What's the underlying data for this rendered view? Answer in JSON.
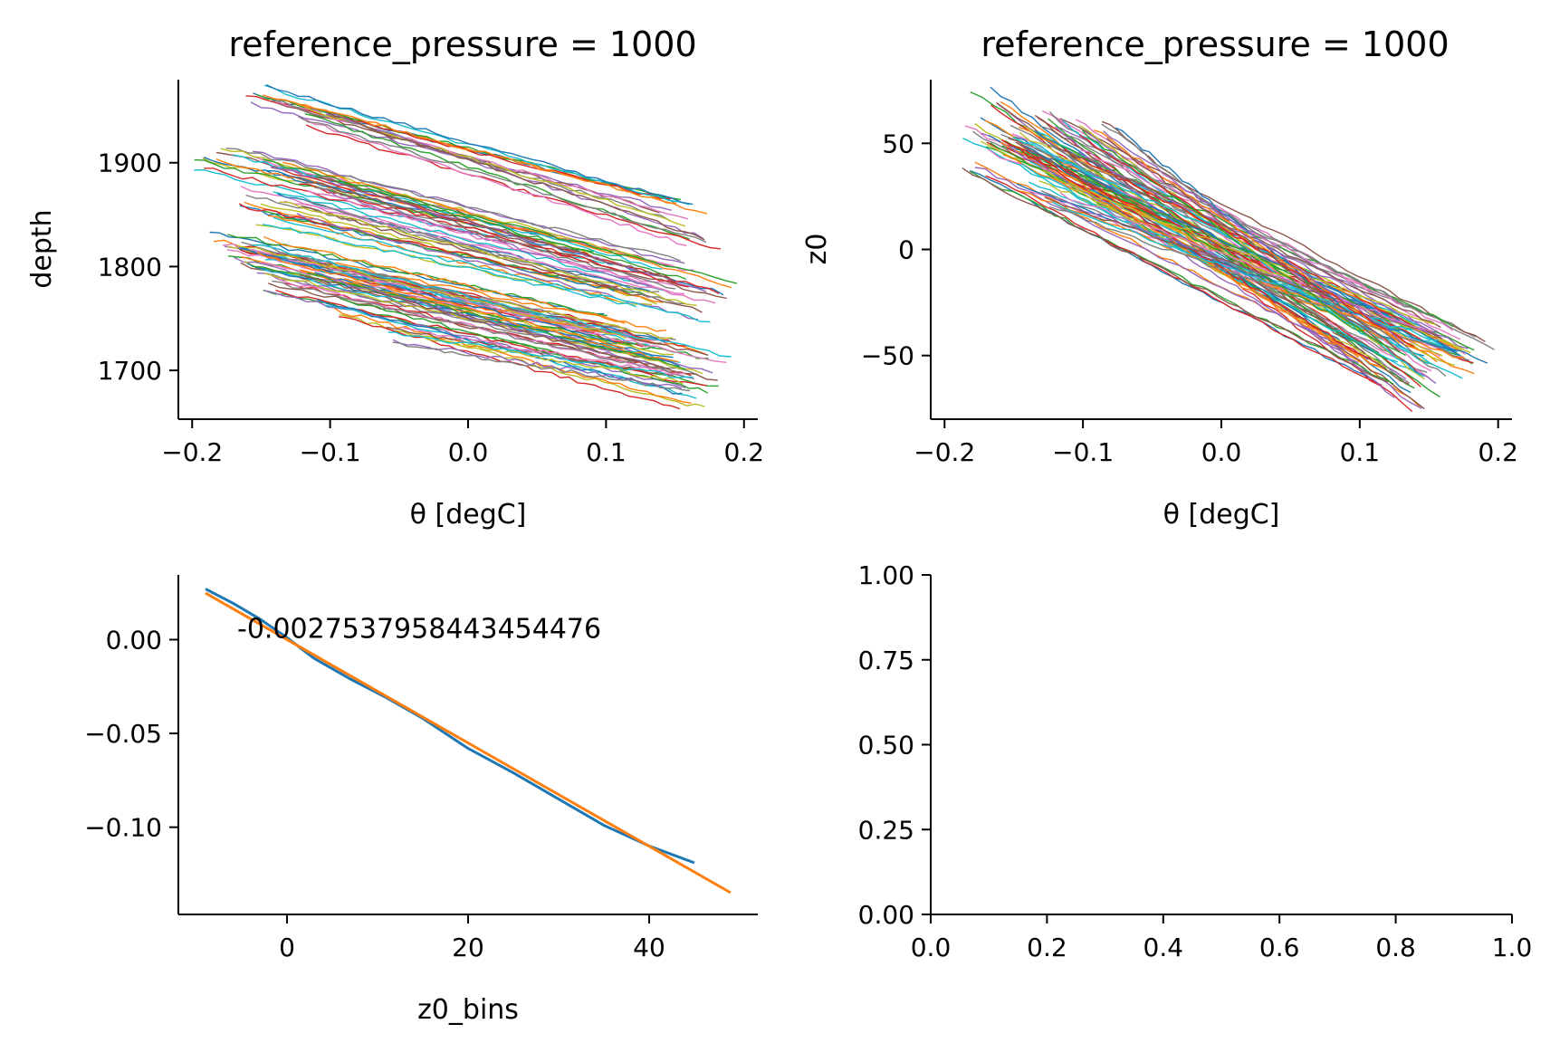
{
  "colors": [
    "#1f77b4",
    "#ff7f0e",
    "#2ca02c",
    "#d62728",
    "#9467bd",
    "#8c564b",
    "#e377c2",
    "#7f7f7f",
    "#bcbd22",
    "#17becf"
  ],
  "chart_data": [
    {
      "type": "line",
      "title": "reference_pressure = 1000",
      "xlabel": "θ [degC]",
      "ylabel": "depth",
      "xlim": [
        -0.21,
        0.21
      ],
      "ylim": [
        1653,
        1980
      ],
      "xticks": [
        "−0.2",
        "−0.1",
        "0.0",
        "0.1",
        "0.2"
      ],
      "xtick_values": [
        -0.2,
        -0.1,
        0.0,
        0.1,
        0.2
      ],
      "yticks": [
        "1700",
        "1800",
        "1900"
      ],
      "ytick_values": [
        1700,
        1800,
        1900
      ],
      "series_style": "many thin profiles, ~100 colored lines",
      "series": [
        {
          "x": [
            -0.15,
            0.145
          ],
          "y": [
            1962,
            1860
          ]
        },
        {
          "x": [
            -0.135,
            0.16
          ],
          "y": [
            1965,
            1850
          ]
        },
        {
          "x": [
            -0.11,
            0.17
          ],
          "y": [
            1940,
            1820
          ]
        },
        {
          "x": [
            -0.185,
            0.1
          ],
          "y": [
            1900,
            1810
          ]
        },
        {
          "x": [
            -0.17,
            0.15
          ],
          "y": [
            1910,
            1800
          ]
        },
        {
          "x": [
            -0.14,
            0.18
          ],
          "y": [
            1895,
            1775
          ]
        },
        {
          "x": [
            -0.15,
            0.14
          ],
          "y": [
            1870,
            1775
          ]
        },
        {
          "x": [
            -0.12,
            0.16
          ],
          "y": [
            1880,
            1780
          ]
        },
        {
          "x": [
            -0.155,
            0.12
          ],
          "y": [
            1850,
            1770
          ]
        },
        {
          "x": [
            -0.13,
            0.17
          ],
          "y": [
            1855,
            1755
          ]
        },
        {
          "x": [
            -0.175,
            0.1
          ],
          "y": [
            1825,
            1745
          ]
        },
        {
          "x": [
            -0.16,
            0.15
          ],
          "y": [
            1820,
            1730
          ]
        },
        {
          "x": [
            -0.17,
            0.13
          ],
          "y": [
            1812,
            1720
          ]
        },
        {
          "x": [
            -0.15,
            0.16
          ],
          "y": [
            1805,
            1715
          ]
        },
        {
          "x": [
            -0.14,
            0.18
          ],
          "y": [
            1800,
            1705
          ]
        },
        {
          "x": [
            -0.12,
            0.15
          ],
          "y": [
            1790,
            1700
          ]
        },
        {
          "x": [
            -0.165,
            0.12
          ],
          "y": [
            1815,
            1725
          ]
        },
        {
          "x": [
            -0.15,
            0.17
          ],
          "y": [
            1778,
            1685
          ]
        },
        {
          "x": [
            -0.1,
            0.165
          ],
          "y": [
            1760,
            1670
          ]
        },
        {
          "x": [
            -0.05,
            0.15
          ],
          "y": [
            1735,
            1690
          ]
        }
      ]
    },
    {
      "type": "line",
      "title": "reference_pressure = 1000",
      "xlabel": "θ [degC]",
      "ylabel": "z0",
      "xlim": [
        -0.21,
        0.21
      ],
      "ylim": [
        -80,
        80
      ],
      "xticks": [
        "−0.2",
        "−0.1",
        "0.0",
        "0.1",
        "0.2"
      ],
      "xtick_values": [
        -0.2,
        -0.1,
        0.0,
        0.1,
        0.2
      ],
      "yticks": [
        "−50",
        "0",
        "50"
      ],
      "ytick_values": [
        -50,
        0,
        50
      ],
      "series_style": "many thin profiles, ~100 colored lines",
      "series": [
        {
          "x": [
            -0.17,
            0.145
          ],
          "y": [
            72,
            -72
          ]
        },
        {
          "x": [
            -0.185,
            0.15
          ],
          "y": [
            58,
            -55
          ]
        },
        {
          "x": [
            -0.16,
            0.17
          ],
          "y": [
            50,
            -45
          ]
        },
        {
          "x": [
            -0.15,
            0.18
          ],
          "y": [
            45,
            -58
          ]
        },
        {
          "x": [
            -0.13,
            0.185
          ],
          "y": [
            60,
            -45
          ]
        },
        {
          "x": [
            -0.18,
            0.12
          ],
          "y": [
            40,
            -60
          ]
        },
        {
          "x": [
            -0.14,
            0.16
          ],
          "y": [
            55,
            -50
          ]
        },
        {
          "x": [
            -0.12,
            0.14
          ],
          "y": [
            62,
            -65
          ]
        },
        {
          "x": [
            -0.165,
            0.13
          ],
          "y": [
            48,
            -40
          ]
        },
        {
          "x": [
            -0.1,
            0.15
          ],
          "y": [
            58,
            -62
          ]
        },
        {
          "x": [
            -0.155,
            0.11
          ],
          "y": [
            52,
            -50
          ]
        },
        {
          "x": [
            -0.145,
            0.17
          ],
          "y": [
            30,
            -50
          ]
        },
        {
          "x": [
            -0.11,
            0.16
          ],
          "y": [
            50,
            -35
          ]
        },
        {
          "x": [
            -0.13,
            0.12
          ],
          "y": [
            38,
            -55
          ]
        },
        {
          "x": [
            -0.12,
            0.15
          ],
          "y": [
            25,
            -40
          ]
        },
        {
          "x": [
            -0.09,
            0.13
          ],
          "y": [
            55,
            -45
          ]
        }
      ]
    },
    {
      "type": "line",
      "title": "",
      "xlabel": "z0_bins",
      "ylabel": "",
      "xlim": [
        -12,
        52
      ],
      "ylim": [
        -0.1465,
        0.0345
      ],
      "xticks": [
        "0",
        "20",
        "40"
      ],
      "xtick_values": [
        0,
        20,
        40
      ],
      "yticks": [
        "0.00",
        "−0.05",
        "−0.10"
      ],
      "ytick_values": [
        0.0,
        -0.05,
        -0.1
      ],
      "annotation": {
        "text": "-0.0027537958443454476",
        "x": -5.5,
        "y": 0.0
      },
      "series": [
        {
          "color": "#1f77b4",
          "x": [
            -9,
            -6,
            -3,
            0,
            3,
            7,
            11,
            15,
            20,
            25,
            30,
            35,
            40,
            45
          ],
          "y": [
            0.027,
            0.0195,
            0.011,
            0.001,
            -0.01,
            -0.021,
            -0.031,
            -0.042,
            -0.058,
            -0.071,
            -0.085,
            -0.099,
            -0.11,
            -0.119
          ]
        },
        {
          "color": "#ff7f0e",
          "x": [
            -9,
            49
          ],
          "y": [
            0.0248,
            -0.1349
          ]
        }
      ]
    },
    {
      "type": "line",
      "title": "",
      "xlabel": "",
      "ylabel": "",
      "xlim": [
        0,
        1
      ],
      "ylim": [
        0,
        1
      ],
      "xticks": [
        "0.0",
        "0.2",
        "0.4",
        "0.6",
        "0.8",
        "1.0"
      ],
      "xtick_values": [
        0.0,
        0.2,
        0.4,
        0.6,
        0.8,
        1.0
      ],
      "yticks": [
        "0.00",
        "0.25",
        "0.50",
        "0.75",
        "1.00"
      ],
      "ytick_values": [
        0.0,
        0.25,
        0.5,
        0.75,
        1.0
      ],
      "series": []
    }
  ]
}
